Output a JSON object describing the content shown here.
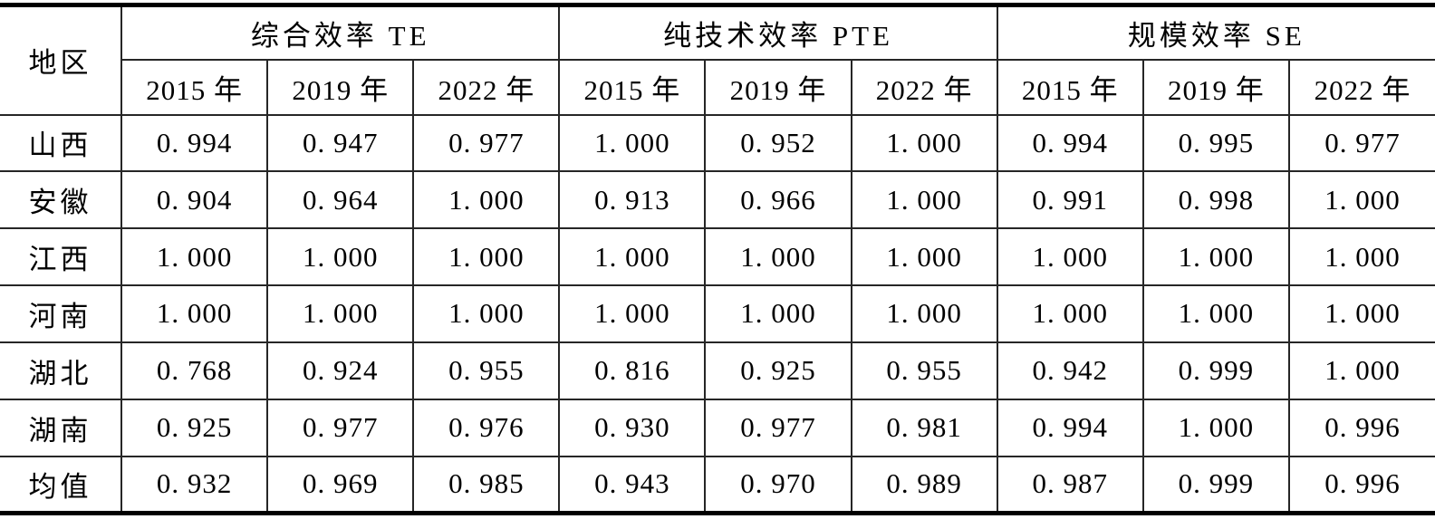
{
  "table": {
    "region_header": "地区",
    "groups": [
      {
        "label": "综合效率 TE"
      },
      {
        "label": "纯技术效率 PTE"
      },
      {
        "label": "规模效率 SE"
      }
    ],
    "year_headers": [
      "2015 年",
      "2019 年",
      "2022 年"
    ],
    "rows": [
      {
        "region": "山西",
        "values": [
          "0. 994",
          "0. 947",
          "0. 977",
          "1. 000",
          "0. 952",
          "1. 000",
          "0. 994",
          "0. 995",
          "0. 977"
        ]
      },
      {
        "region": "安徽",
        "values": [
          "0. 904",
          "0. 964",
          "1. 000",
          "0. 913",
          "0. 966",
          "1. 000",
          "0. 991",
          "0. 998",
          "1. 000"
        ]
      },
      {
        "region": "江西",
        "values": [
          "1. 000",
          "1. 000",
          "1. 000",
          "1. 000",
          "1. 000",
          "1. 000",
          "1. 000",
          "1. 000",
          "1. 000"
        ]
      },
      {
        "region": "河南",
        "values": [
          "1. 000",
          "1. 000",
          "1. 000",
          "1. 000",
          "1. 000",
          "1. 000",
          "1. 000",
          "1. 000",
          "1. 000"
        ]
      },
      {
        "region": "湖北",
        "values": [
          "0. 768",
          "0. 924",
          "0. 955",
          "0. 816",
          "0. 925",
          "0. 955",
          "0. 942",
          "0. 999",
          "1. 000"
        ]
      },
      {
        "region": "湖南",
        "values": [
          "0. 925",
          "0. 977",
          "0. 976",
          "0. 930",
          "0. 977",
          "0. 981",
          "0. 994",
          "1. 000",
          "0. 996"
        ]
      },
      {
        "region": "均值",
        "values": [
          "0. 932",
          "0. 969",
          "0. 985",
          "0. 943",
          "0. 970",
          "0. 989",
          "0. 987",
          "0. 999",
          "0. 996"
        ]
      }
    ]
  },
  "colors": {
    "text": "#000000",
    "grid_line": "#262626",
    "thick_rule": "#000000",
    "background": "#ffffff"
  }
}
